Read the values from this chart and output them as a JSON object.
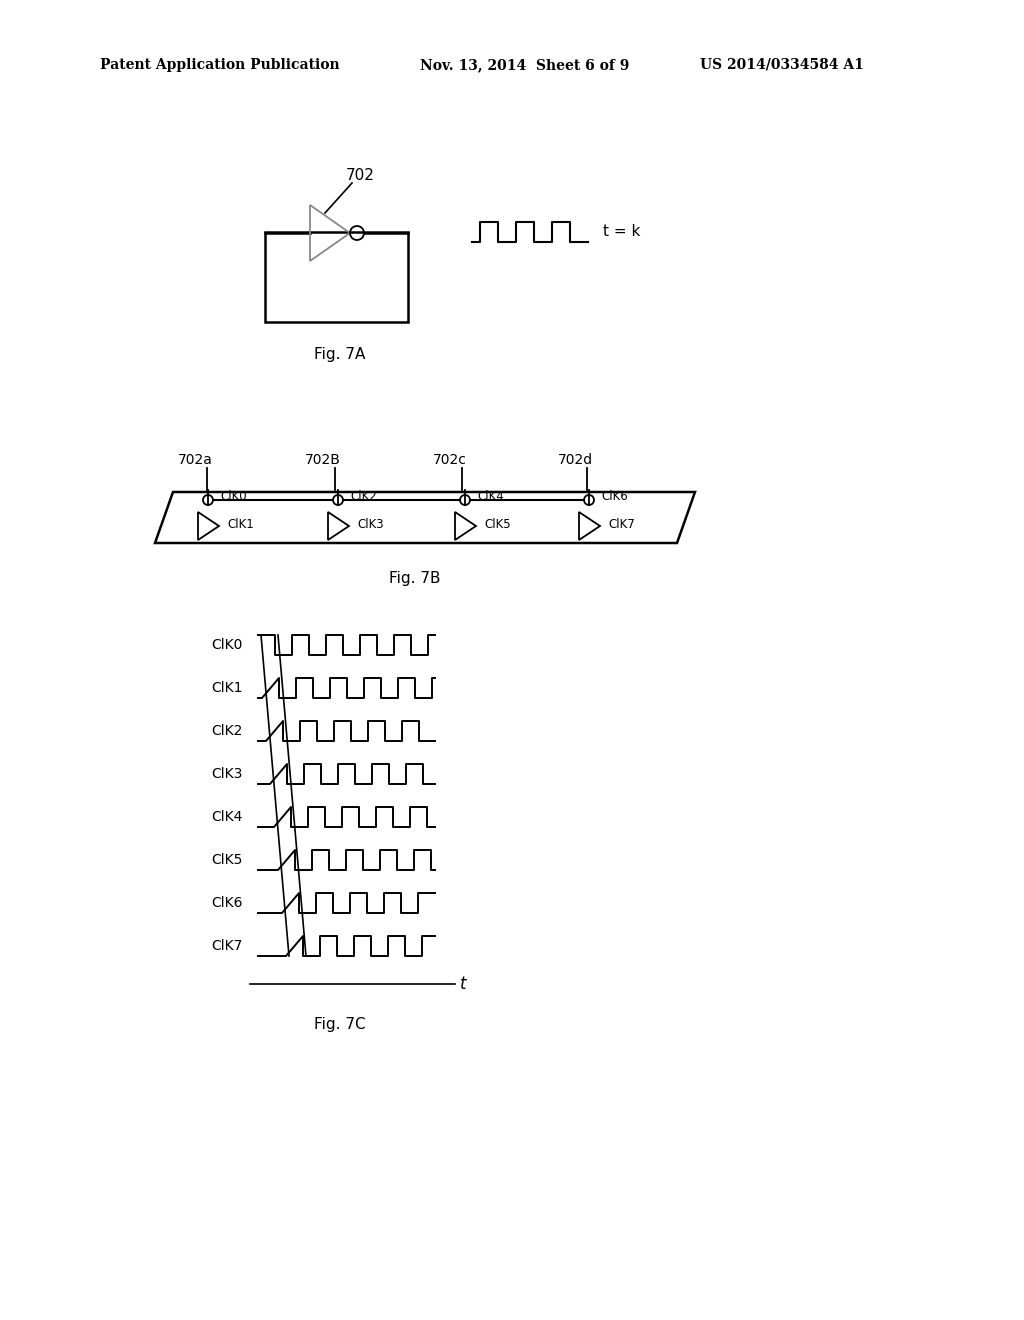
{
  "bg_color": "#ffffff",
  "header_left": "Patent Application Publication",
  "header_mid": "Nov. 13, 2014  Sheet 6 of 9",
  "header_right": "US 2014/0334584 A1",
  "fig7A_label": "Fig. 7A",
  "fig7B_label": "Fig. 7B",
  "fig7C_label": "Fig. 7C",
  "label_702": "702",
  "label_702a": "702a",
  "label_702B": "702B",
  "label_702c": "702c",
  "label_702d": "702d",
  "clk_top_labels": [
    "ClK0",
    "ClK2",
    "ClK4",
    "ClK6"
  ],
  "clk_bot_labels": [
    "ClK1",
    "ClK3",
    "ClK5",
    "ClK7"
  ],
  "clk_labels_7c": [
    "ClK0",
    "ClK1",
    "ClK2",
    "ClK3",
    "ClK4",
    "ClK5",
    "ClK6",
    "ClK7"
  ],
  "t_equals_k": "t = k",
  "t_label": "t"
}
